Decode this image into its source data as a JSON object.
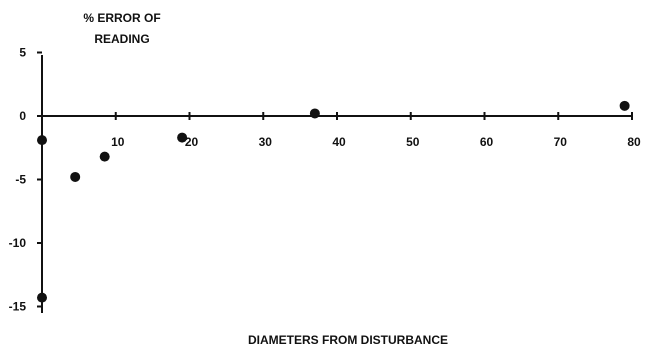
{
  "chart_data": {
    "type": "scatter",
    "title": "",
    "ylabel": [
      "% ERROR OF",
      "READING"
    ],
    "xlabel": "DIAMETERS FROM DISTURBANCE",
    "xlim": [
      0,
      80
    ],
    "ylim": [
      -15,
      5
    ],
    "x_ticks": [
      10,
      20,
      30,
      40,
      50,
      60,
      70,
      80
    ],
    "y_ticks": [
      5,
      0,
      -5,
      -10,
      -15
    ],
    "grid": false,
    "legend": "none",
    "marker_color": "#111111",
    "points": [
      {
        "x": 0,
        "y": -14.3
      },
      {
        "x": 0,
        "y": -1.9
      },
      {
        "x": 4.5,
        "y": -4.8
      },
      {
        "x": 8.5,
        "y": -3.2
      },
      {
        "x": 19,
        "y": -1.7
      },
      {
        "x": 37,
        "y": 0.2
      },
      {
        "x": 79,
        "y": 0.8
      }
    ]
  }
}
